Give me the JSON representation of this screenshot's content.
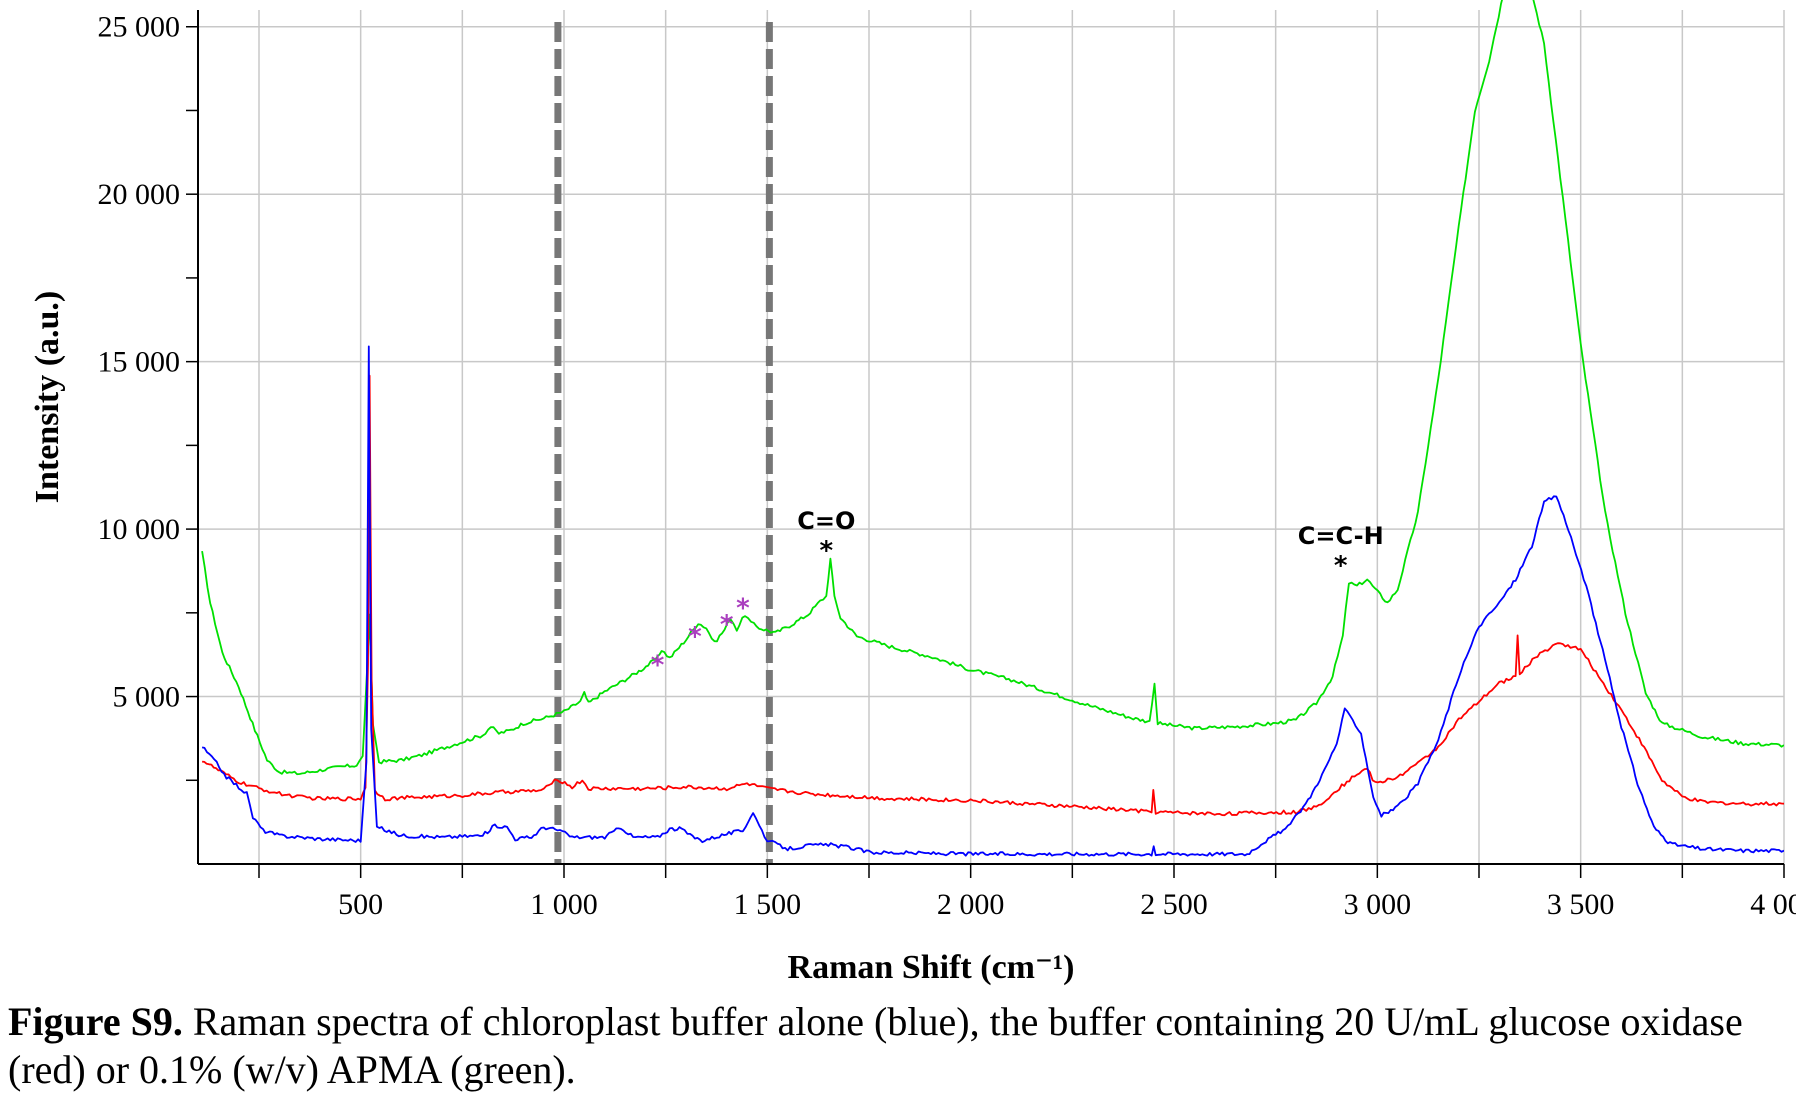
{
  "caption": {
    "label": "Figure S9.",
    "text": " Raman spectra of chloroplast buffer alone (blue), the buffer containing 20 U/mL glucose oxidase (red) or 0.1% (w/v) APMA (green)."
  },
  "chart_data": {
    "type": "line",
    "title": "",
    "xlabel": "Raman Shift (cm⁻¹)",
    "ylabel": "Intensity (a.u.)",
    "xlim": [
      100,
      4000
    ],
    "ylim": [
      0,
      25500
    ],
    "grid": true,
    "x_ticks": [
      {
        "value": 500,
        "label": "500"
      },
      {
        "value": 1000,
        "label": "1 000"
      },
      {
        "value": 1500,
        "label": "1 500"
      },
      {
        "value": 2000,
        "label": "2 000"
      },
      {
        "value": 2500,
        "label": "2 500"
      },
      {
        "value": 3000,
        "label": "3 000"
      },
      {
        "value": 3500,
        "label": "3 500"
      },
      {
        "value": 4000,
        "label": "4 000"
      }
    ],
    "y_ticks": [
      {
        "value": 5000,
        "label": "5 000"
      },
      {
        "value": 10000,
        "label": "10 000"
      },
      {
        "value": 15000,
        "label": "15 000"
      },
      {
        "value": 20000,
        "label": "20 000"
      },
      {
        "value": 25000,
        "label": "25 000"
      }
    ],
    "dashed_lines": [
      985,
      1505
    ],
    "series": [
      {
        "color": "#00e000",
        "points": [
          [
            110,
            9300
          ],
          [
            130,
            7800
          ],
          [
            160,
            6300
          ],
          [
            200,
            5300
          ],
          [
            240,
            4000
          ],
          [
            270,
            3100
          ],
          [
            300,
            2750
          ],
          [
            350,
            2700
          ],
          [
            400,
            2800
          ],
          [
            450,
            2900
          ],
          [
            490,
            2950
          ],
          [
            505,
            3200
          ],
          [
            515,
            5600
          ],
          [
            522,
            7400
          ],
          [
            530,
            4200
          ],
          [
            545,
            3050
          ],
          [
            600,
            3100
          ],
          [
            650,
            3250
          ],
          [
            700,
            3450
          ],
          [
            750,
            3650
          ],
          [
            800,
            3850
          ],
          [
            820,
            4100
          ],
          [
            840,
            3900
          ],
          [
            870,
            4000
          ],
          [
            900,
            4200
          ],
          [
            950,
            4350
          ],
          [
            1000,
            4550
          ],
          [
            1040,
            4850
          ],
          [
            1050,
            5100
          ],
          [
            1060,
            4800
          ],
          [
            1100,
            5150
          ],
          [
            1150,
            5500
          ],
          [
            1190,
            5800
          ],
          [
            1230,
            6150
          ],
          [
            1240,
            6400
          ],
          [
            1260,
            6150
          ],
          [
            1300,
            6700
          ],
          [
            1330,
            7200
          ],
          [
            1350,
            7050
          ],
          [
            1370,
            6600
          ],
          [
            1395,
            7000
          ],
          [
            1410,
            7350
          ],
          [
            1425,
            7000
          ],
          [
            1445,
            7450
          ],
          [
            1460,
            7200
          ],
          [
            1480,
            7050
          ],
          [
            1520,
            6900
          ],
          [
            1560,
            7150
          ],
          [
            1600,
            7450
          ],
          [
            1630,
            7850
          ],
          [
            1645,
            8000
          ],
          [
            1655,
            9100
          ],
          [
            1665,
            8000
          ],
          [
            1680,
            7350
          ],
          [
            1720,
            6800
          ],
          [
            1800,
            6500
          ],
          [
            1900,
            6200
          ],
          [
            2000,
            5800
          ],
          [
            2100,
            5500
          ],
          [
            2200,
            5100
          ],
          [
            2300,
            4700
          ],
          [
            2400,
            4350
          ],
          [
            2440,
            4250
          ],
          [
            2452,
            5400
          ],
          [
            2460,
            4200
          ],
          [
            2550,
            4050
          ],
          [
            2650,
            4100
          ],
          [
            2750,
            4200
          ],
          [
            2800,
            4300
          ],
          [
            2850,
            4800
          ],
          [
            2890,
            5600
          ],
          [
            2915,
            6800
          ],
          [
            2930,
            8400
          ],
          [
            2950,
            8300
          ],
          [
            2975,
            8500
          ],
          [
            2995,
            8200
          ],
          [
            3025,
            7800
          ],
          [
            3050,
            8200
          ],
          [
            3100,
            10500
          ],
          [
            3150,
            14500
          ],
          [
            3200,
            19000
          ],
          [
            3240,
            22500
          ],
          [
            3275,
            24000
          ],
          [
            3310,
            26000
          ],
          [
            3380,
            26000
          ],
          [
            3410,
            24500
          ],
          [
            3450,
            20500
          ],
          [
            3500,
            15500
          ],
          [
            3560,
            10500
          ],
          [
            3610,
            7500
          ],
          [
            3660,
            5100
          ],
          [
            3700,
            4200
          ],
          [
            3800,
            3800
          ],
          [
            3900,
            3600
          ],
          [
            4000,
            3550
          ]
        ]
      },
      {
        "color": "#ff0000",
        "points": [
          [
            110,
            3100
          ],
          [
            150,
            2800
          ],
          [
            200,
            2450
          ],
          [
            250,
            2250
          ],
          [
            300,
            2100
          ],
          [
            350,
            2000
          ],
          [
            400,
            1950
          ],
          [
            450,
            1950
          ],
          [
            500,
            1950
          ],
          [
            512,
            2300
          ],
          [
            518,
            6000
          ],
          [
            522,
            14600
          ],
          [
            527,
            5500
          ],
          [
            535,
            2200
          ],
          [
            560,
            1950
          ],
          [
            650,
            2000
          ],
          [
            750,
            2050
          ],
          [
            850,
            2150
          ],
          [
            950,
            2200
          ],
          [
            970,
            2450
          ],
          [
            990,
            2500
          ],
          [
            1020,
            2300
          ],
          [
            1045,
            2500
          ],
          [
            1060,
            2250
          ],
          [
            1200,
            2250
          ],
          [
            1300,
            2300
          ],
          [
            1400,
            2250
          ],
          [
            1450,
            2400
          ],
          [
            1500,
            2250
          ],
          [
            1600,
            2100
          ],
          [
            1800,
            1950
          ],
          [
            2000,
            1900
          ],
          [
            2200,
            1750
          ],
          [
            2400,
            1600
          ],
          [
            2445,
            1550
          ],
          [
            2449,
            2200
          ],
          [
            2455,
            1550
          ],
          [
            2600,
            1500
          ],
          [
            2800,
            1550
          ],
          [
            2850,
            1700
          ],
          [
            2900,
            2200
          ],
          [
            2950,
            2700
          ],
          [
            2975,
            2850
          ],
          [
            2995,
            2400
          ],
          [
            3050,
            2600
          ],
          [
            3100,
            3000
          ],
          [
            3150,
            3500
          ],
          [
            3200,
            4300
          ],
          [
            3300,
            5400
          ],
          [
            3340,
            5600
          ],
          [
            3345,
            6800
          ],
          [
            3350,
            5700
          ],
          [
            3400,
            6300
          ],
          [
            3450,
            6600
          ],
          [
            3500,
            6400
          ],
          [
            3550,
            5500
          ],
          [
            3600,
            4600
          ],
          [
            3650,
            3600
          ],
          [
            3700,
            2500
          ],
          [
            3750,
            2000
          ],
          [
            3800,
            1850
          ],
          [
            3900,
            1800
          ],
          [
            4000,
            1800
          ]
        ]
      },
      {
        "color": "#0000ff",
        "points": [
          [
            110,
            3500
          ],
          [
            140,
            3100
          ],
          [
            170,
            2600
          ],
          [
            200,
            2300
          ],
          [
            220,
            2100
          ],
          [
            235,
            1400
          ],
          [
            260,
            1000
          ],
          [
            300,
            850
          ],
          [
            400,
            750
          ],
          [
            500,
            700
          ],
          [
            514,
            3000
          ],
          [
            520,
            15500
          ],
          [
            526,
            4000
          ],
          [
            540,
            1100
          ],
          [
            600,
            850
          ],
          [
            700,
            800
          ],
          [
            800,
            850
          ],
          [
            830,
            1150
          ],
          [
            860,
            1100
          ],
          [
            880,
            750
          ],
          [
            920,
            800
          ],
          [
            950,
            1100
          ],
          [
            990,
            1000
          ],
          [
            1020,
            800
          ],
          [
            1100,
            800
          ],
          [
            1140,
            1100
          ],
          [
            1170,
            800
          ],
          [
            1230,
            800
          ],
          [
            1260,
            1050
          ],
          [
            1290,
            1050
          ],
          [
            1310,
            850
          ],
          [
            1340,
            700
          ],
          [
            1400,
            900
          ],
          [
            1440,
            1000
          ],
          [
            1465,
            1550
          ],
          [
            1480,
            1150
          ],
          [
            1500,
            700
          ],
          [
            1550,
            450
          ],
          [
            1600,
            550
          ],
          [
            1650,
            580
          ],
          [
            1700,
            500
          ],
          [
            1750,
            350
          ],
          [
            2000,
            300
          ],
          [
            2200,
            300
          ],
          [
            2400,
            300
          ],
          [
            2445,
            300
          ],
          [
            2450,
            550
          ],
          [
            2455,
            300
          ],
          [
            2600,
            300
          ],
          [
            2680,
            300
          ],
          [
            2720,
            650
          ],
          [
            2780,
            1100
          ],
          [
            2830,
            1900
          ],
          [
            2870,
            2800
          ],
          [
            2900,
            3600
          ],
          [
            2920,
            4600
          ],
          [
            2940,
            4300
          ],
          [
            2960,
            3900
          ],
          [
            2990,
            2000
          ],
          [
            3010,
            1450
          ],
          [
            3050,
            1700
          ],
          [
            3100,
            2400
          ],
          [
            3150,
            3700
          ],
          [
            3200,
            5600
          ],
          [
            3250,
            7100
          ],
          [
            3300,
            7800
          ],
          [
            3340,
            8500
          ],
          [
            3380,
            9500
          ],
          [
            3410,
            10800
          ],
          [
            3440,
            11000
          ],
          [
            3470,
            10000
          ],
          [
            3520,
            8000
          ],
          [
            3560,
            6100
          ],
          [
            3600,
            4100
          ],
          [
            3640,
            2400
          ],
          [
            3680,
            1100
          ],
          [
            3720,
            600
          ],
          [
            3800,
            450
          ],
          [
            3900,
            400
          ],
          [
            4000,
            400
          ]
        ]
      }
    ],
    "annotations": [
      {
        "x": 1645,
        "y": 10000,
        "text": "C=O",
        "star_color": "#000000"
      },
      {
        "x": 2910,
        "y": 9550,
        "text": "C=C-H",
        "star_color": "#000000"
      }
    ],
    "star_markers": [
      {
        "x": 1230,
        "y": 6050,
        "color": "#aa3fbf"
      },
      {
        "x": 1322,
        "y": 6900,
        "color": "#aa3fbf"
      },
      {
        "x": 1400,
        "y": 7250,
        "color": "#aa3fbf"
      },
      {
        "x": 1440,
        "y": 7750,
        "color": "#aa3fbf"
      }
    ]
  }
}
